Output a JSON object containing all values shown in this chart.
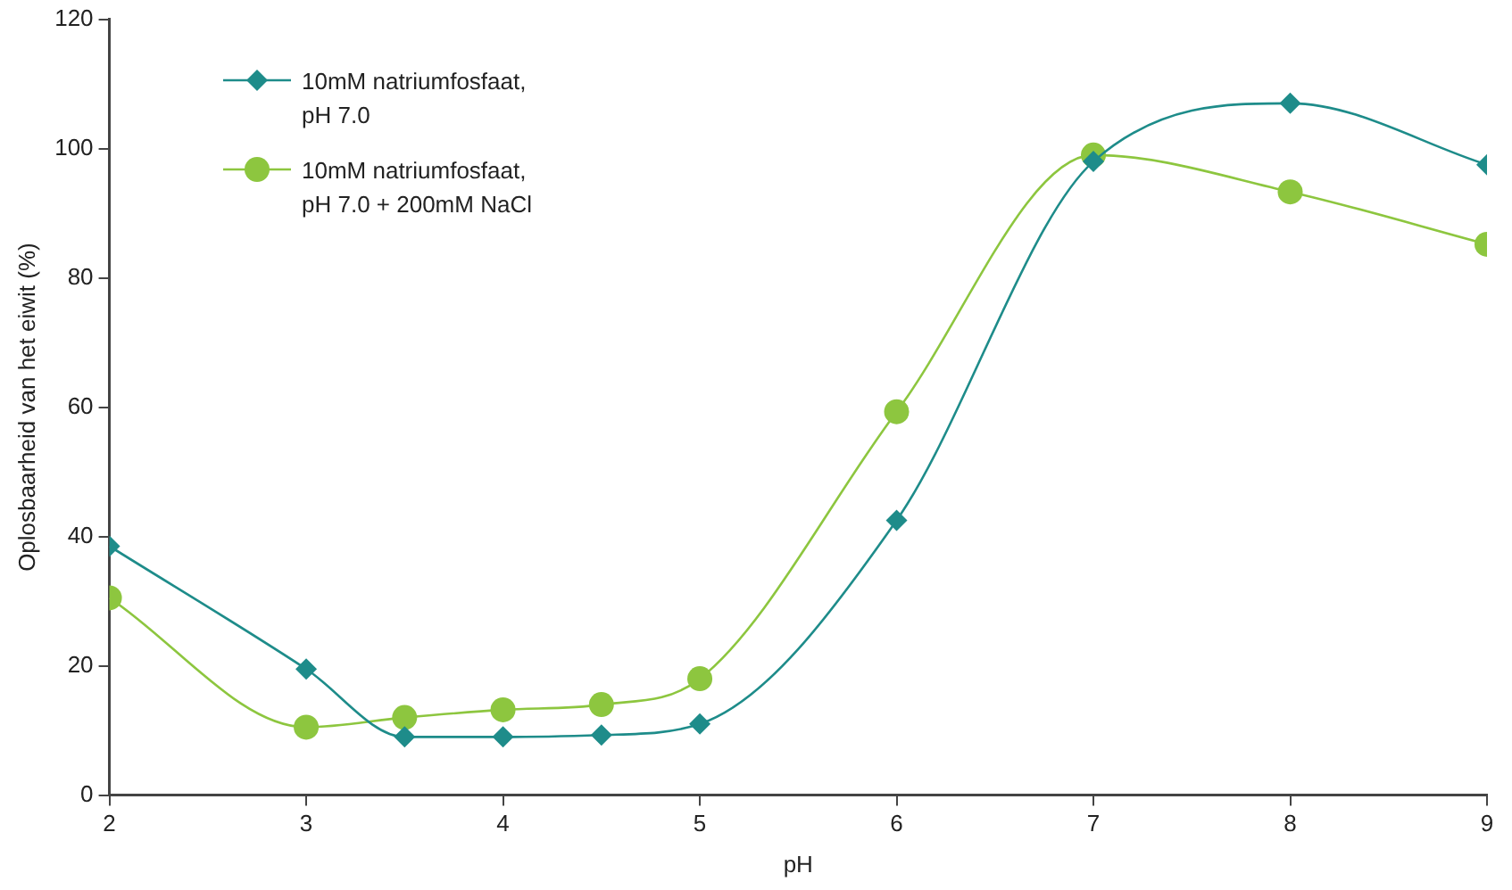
{
  "chart_data": {
    "type": "line",
    "xlabel": "pH",
    "ylabel": "Oplosbaarheid van het eiwit (%)",
    "x": [
      2,
      3,
      3.5,
      4,
      4.5,
      5,
      6,
      7,
      8,
      9
    ],
    "series": [
      {
        "name": "10mM natriumfosfaat,\npH 7.0",
        "color": "#1e8c8a",
        "marker": "diamond",
        "values": [
          38.5,
          19.5,
          9,
          9,
          9.3,
          11,
          42.5,
          98,
          107,
          97.5
        ]
      },
      {
        "name": "10mM natriumfosfaat,\npH 7.0 + 200mM NaCl",
        "color": "#8dc63f",
        "marker": "circle",
        "values": [
          30.5,
          10.5,
          12,
          13.2,
          14,
          18,
          59.3,
          99,
          93.3,
          85.2
        ]
      }
    ],
    "xlim": [
      2,
      9
    ],
    "xticks": [
      2,
      3,
      4,
      5,
      6,
      7,
      8,
      9
    ],
    "ylim": [
      0,
      120
    ],
    "yticks": [
      0,
      20,
      40,
      60,
      80,
      100,
      120
    ],
    "grid": false,
    "legend": "top left"
  }
}
